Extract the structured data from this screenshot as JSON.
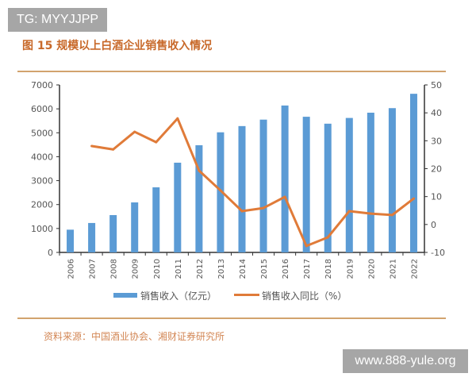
{
  "watermarks": {
    "top_left": "TG: MYYJJPP",
    "bottom_right": "www.888-yule.org"
  },
  "title": "图 15 规模以上白酒企业销售收入情况",
  "source": "资料来源：中国酒业协会、湘财证券研究所",
  "chart_data": {
    "type": "bar+line",
    "categories": [
      "2006",
      "2007",
      "2008",
      "2009",
      "2010",
      "2011",
      "2012",
      "2013",
      "2014",
      "2015",
      "2016",
      "2017",
      "2018",
      "2019",
      "2020",
      "2021",
      "2022"
    ],
    "series": [
      {
        "name": "销售收入（亿元）",
        "type": "bar",
        "axis": "left",
        "color": "#5b9bd5",
        "values": [
          950,
          1230,
          1560,
          2090,
          2720,
          3750,
          4480,
          5020,
          5280,
          5550,
          6140,
          5670,
          5380,
          5620,
          5840,
          6030,
          6630
        ]
      },
      {
        "name": "销售收入同比（%）",
        "type": "line",
        "axis": "right",
        "color": "#e07b39",
        "values": [
          null,
          28.1,
          26.9,
          33.2,
          29.5,
          38.0,
          19.3,
          12.2,
          4.8,
          5.9,
          9.9,
          -7.7,
          -4.6,
          4.8,
          3.9,
          3.4,
          9.3
        ]
      }
    ],
    "y_left": {
      "range": [
        0,
        7000
      ],
      "ticks": [
        "0",
        "1000",
        "2000",
        "3000",
        "4000",
        "5000",
        "6000",
        "7000"
      ]
    },
    "y_right": {
      "range": [
        -10,
        50
      ],
      "ticks": [
        "-10",
        "0",
        "10",
        "20",
        "30",
        "40",
        "50"
      ]
    },
    "grid": false,
    "legend": "bottom"
  }
}
